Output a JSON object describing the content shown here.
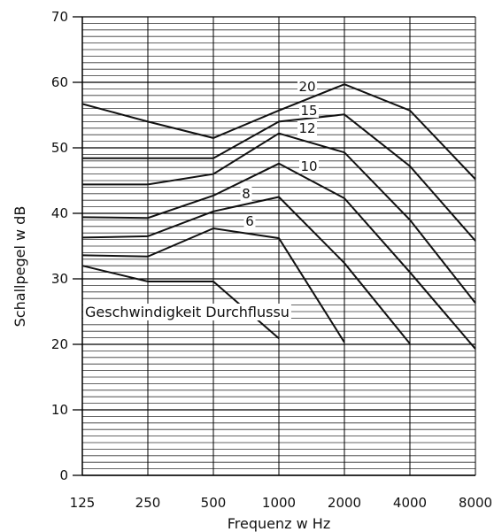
{
  "chart_data": {
    "type": "line",
    "title": "",
    "xlabel": "Frequenz w Hz",
    "ylabel": "Schallpegel w dB",
    "x_scale": "log2",
    "categories": [
      "125",
      "250",
      "500",
      "1000",
      "2000",
      "4000",
      "8000"
    ],
    "ylim": [
      0,
      70
    ],
    "y_ticks": [
      "0",
      "10",
      "20",
      "30",
      "40",
      "50",
      "60",
      "70"
    ],
    "grid": "horizontal lines every 1 dB, vertical lines at each octave band",
    "annotation": "Geschwindigkeit Durchflussu",
    "series": [
      {
        "name": "20",
        "x": [
          125,
          250,
          500,
          1000,
          2000,
          4000,
          8000
        ],
        "values": [
          56.7,
          54.0,
          51.5,
          55.7,
          59.7,
          55.7,
          45.2
        ]
      },
      {
        "name": "15",
        "x": [
          125,
          250,
          500,
          1000,
          2000,
          4000,
          8000
        ],
        "values": [
          48.4,
          48.4,
          48.4,
          54.0,
          55.1,
          47.2,
          35.8
        ]
      },
      {
        "name": "12",
        "x": [
          125,
          250,
          500,
          1000,
          2000,
          4000,
          8000
        ],
        "values": [
          44.4,
          44.4,
          46.0,
          52.2,
          49.3,
          39.0,
          26.3
        ]
      },
      {
        "name": "10",
        "x": [
          125,
          250,
          500,
          1000,
          2000,
          4000,
          8000
        ],
        "values": [
          39.4,
          39.3,
          42.7,
          47.6,
          42.3,
          31.0,
          19.3
        ]
      },
      {
        "name": "8",
        "x": [
          125,
          250,
          500,
          1000,
          2000,
          4000
        ],
        "values": [
          36.3,
          36.5,
          40.3,
          42.5,
          32.4,
          20.1
        ]
      },
      {
        "name": "6",
        "x": [
          125,
          250,
          500,
          1000,
          2000
        ],
        "values": [
          33.6,
          33.4,
          37.7,
          36.2,
          20.3
        ]
      },
      {
        "name": "",
        "x": [
          125,
          250,
          500,
          1000
        ],
        "values": [
          32.0,
          29.6,
          29.6,
          20.9
        ]
      }
    ]
  }
}
